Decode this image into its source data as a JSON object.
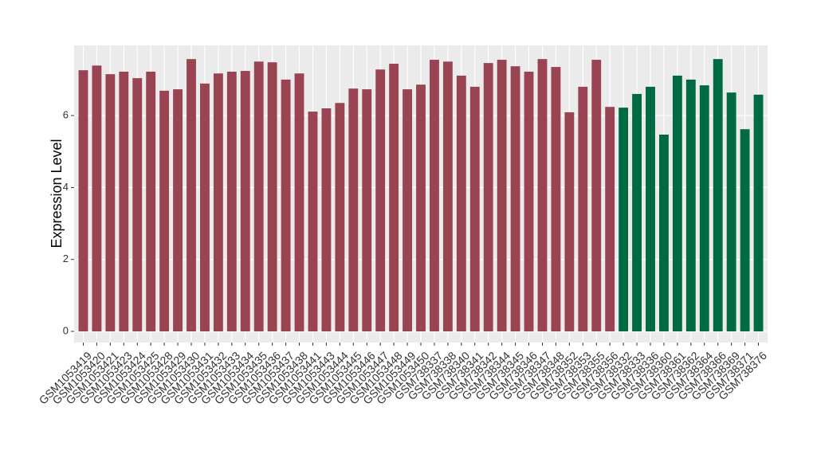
{
  "chart_data": {
    "type": "bar",
    "y_label": "Expression Level",
    "categories": [
      "GSM1053419",
      "GSM1053420",
      "GSM1053421",
      "GSM1053423",
      "GSM1053424",
      "GSM1053425",
      "GSM1053428",
      "GSM1053429",
      "GSM1053430",
      "GSM1053431",
      "GSM1053432",
      "GSM1053433",
      "GSM1053434",
      "GSM1053435",
      "GSM1053436",
      "GSM1053437",
      "GSM1053438",
      "GSM1053441",
      "GSM1053443",
      "GSM1053444",
      "GSM1053445",
      "GSM1053446",
      "GSM1053447",
      "GSM1053448",
      "GSM1053449",
      "GSM1053450",
      "GSM738337",
      "GSM738338",
      "GSM738340",
      "GSM738341",
      "GSM738342",
      "GSM738344",
      "GSM738345",
      "GSM738346",
      "GSM738347",
      "GSM738348",
      "GSM738352",
      "GSM738353",
      "GSM738355",
      "GSM738356",
      "GSM738332",
      "GSM738333",
      "GSM738336",
      "GSM738360",
      "GSM738361",
      "GSM738362",
      "GSM738364",
      "GSM738366",
      "GSM738369",
      "GSM738371",
      "GSM738376"
    ],
    "values": [
      7.26,
      7.39,
      7.15,
      7.22,
      7.04,
      7.22,
      6.69,
      6.73,
      7.57,
      6.89,
      7.17,
      7.22,
      7.24,
      7.5,
      7.48,
      7.0,
      7.17,
      6.11,
      6.2,
      6.35,
      6.75,
      6.73,
      7.28,
      7.44,
      6.73,
      6.86,
      7.55,
      7.5,
      7.11,
      6.8,
      7.46,
      7.55,
      7.37,
      7.22,
      7.57,
      7.35,
      6.09,
      6.8,
      7.55,
      6.24,
      6.22,
      6.6,
      6.8,
      5.47,
      7.11,
      7.0,
      6.84,
      7.57,
      6.64,
      5.62,
      6.58
    ],
    "colors": [
      "#9a4352",
      "#9a4352",
      "#9a4352",
      "#9a4352",
      "#9a4352",
      "#9a4352",
      "#9a4352",
      "#9a4352",
      "#9a4352",
      "#9a4352",
      "#9a4352",
      "#9a4352",
      "#9a4352",
      "#9a4352",
      "#9a4352",
      "#9a4352",
      "#9a4352",
      "#9a4352",
      "#9a4352",
      "#9a4352",
      "#9a4352",
      "#9a4352",
      "#9a4352",
      "#9a4352",
      "#9a4352",
      "#9a4352",
      "#9a4352",
      "#9a4352",
      "#9a4352",
      "#9a4352",
      "#9a4352",
      "#9a4352",
      "#9a4352",
      "#9a4352",
      "#9a4352",
      "#9a4352",
      "#9a4352",
      "#9a4352",
      "#9a4352",
      "#9a4352",
      "#006a43",
      "#006a43",
      "#006a43",
      "#006a43",
      "#006a43",
      "#006a43",
      "#006a43",
      "#006a43",
      "#006a43",
      "#006a43",
      "#006a43"
    ],
    "ylim": [
      -0.31,
      7.95
    ],
    "yticks": [
      0,
      2,
      4,
      6
    ],
    "grid": true
  }
}
